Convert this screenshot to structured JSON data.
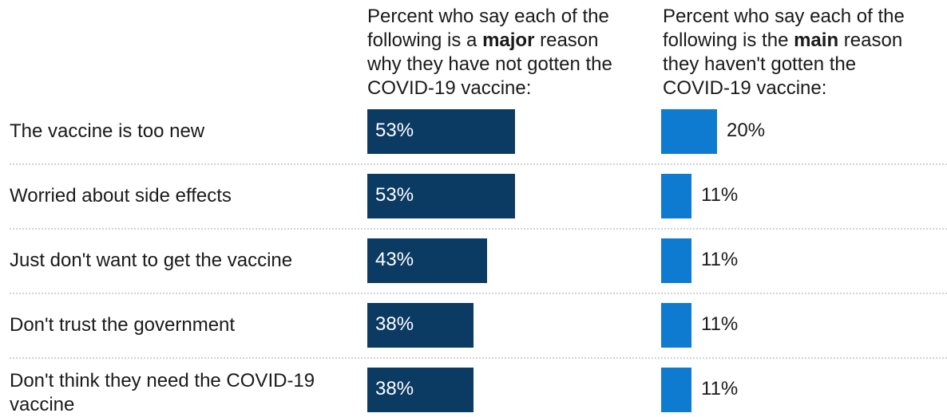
{
  "chart_data": {
    "type": "bar",
    "headers": {
      "major": {
        "line1": "Percent who say each of the",
        "line2_pre": "following is a ",
        "line2_bold": "major",
        "line2_post": " reason",
        "line3": "why they have not gotten the",
        "line4": "COVID-19 vaccine:"
      },
      "main": {
        "line1": "Percent who say each of the",
        "line2_pre": "following is the ",
        "line2_bold": "main",
        "line2_post": " reason",
        "line3": "they haven't gotten the",
        "line4": "COVID-19 vaccine:"
      }
    },
    "categories": [
      "The vaccine is too new",
      "Worried about side effects",
      "Just don't want to get the vaccine",
      "Don't trust the government",
      "Don't think they need the COVID-19 vaccine"
    ],
    "series": [
      {
        "key": "major",
        "values": [
          53,
          53,
          43,
          38,
          38
        ],
        "labels": [
          "53%",
          "53%",
          "43%",
          "38%",
          "38%"
        ]
      },
      {
        "key": "main",
        "values": [
          20,
          11,
          11,
          11,
          11
        ],
        "labels": [
          "20%",
          "11%",
          "11%",
          "11%",
          "11%"
        ]
      }
    ],
    "colors": {
      "major": "#0b3a63",
      "main": "#0f7bd0"
    }
  }
}
